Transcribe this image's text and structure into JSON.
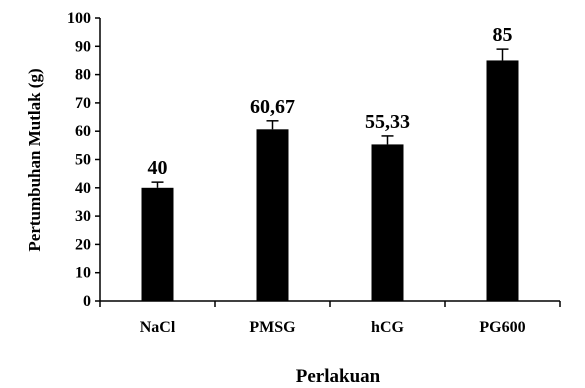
{
  "chart_data": {
    "type": "bar",
    "categories": [
      "NaCl",
      "PMSG",
      "hCG",
      "PG600"
    ],
    "values": [
      40,
      60.67,
      55.33,
      85
    ],
    "errors": [
      2,
      3,
      3,
      4
    ],
    "data_labels": [
      "40",
      "60,67",
      "55,33",
      "85"
    ],
    "title": "",
    "xlabel": "Perlakuan",
    "ylabel": "Pertumbuhan Mutlak (g)",
    "ylim": [
      0,
      100
    ],
    "yticks": [
      0,
      10,
      20,
      30,
      40,
      50,
      60,
      70,
      80,
      90,
      100
    ],
    "grid": false,
    "bar_color": "#000000"
  }
}
